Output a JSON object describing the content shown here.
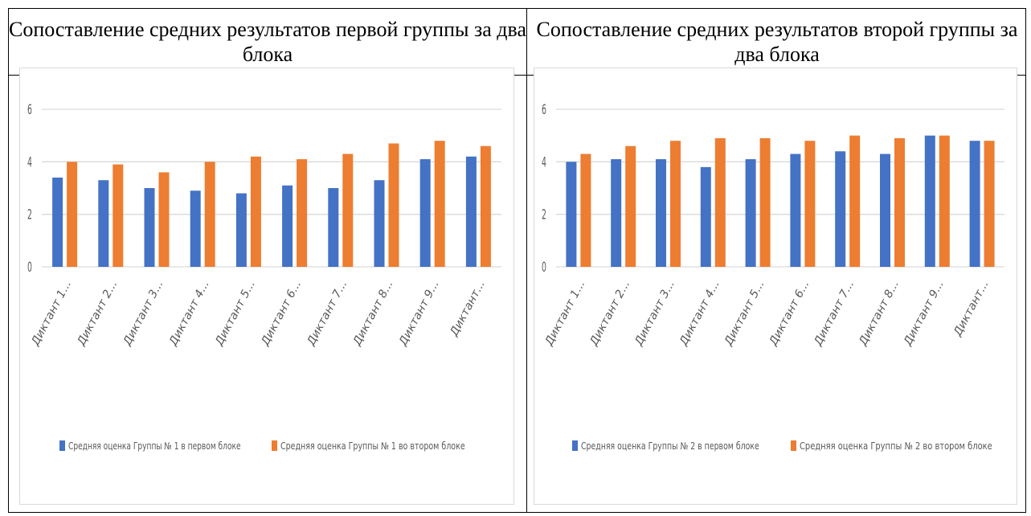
{
  "table": {
    "left_header": "Сопоставление средних результатов первой группы за два блока",
    "right_header": "Сопоставление средних результатов второй группы за два блока"
  },
  "colors": {
    "series1": "#4472C4",
    "series2": "#ED7D31"
  },
  "chart_data": [
    {
      "type": "bar",
      "categories": [
        "Диктант 1...",
        "Диктант 2...",
        "Диктант 3...",
        "Диктант 4...",
        "Диктант 5...",
        "Диктант 6...",
        "Диктант 7...",
        "Диктант 8...",
        "Диктант 9...",
        "Диктант..."
      ],
      "series": [
        {
          "name": "Средняя оценка Группы № 1 в первом блоке",
          "values": [
            3.4,
            3.3,
            3.0,
            2.9,
            2.8,
            3.1,
            3.0,
            3.3,
            4.1,
            4.2
          ]
        },
        {
          "name": "Средняя оценка Группы № 1 во втором блоке",
          "values": [
            4.0,
            3.9,
            3.6,
            4.0,
            4.2,
            4.1,
            4.3,
            4.7,
            4.8,
            4.6
          ]
        }
      ],
      "yticks": [
        "0",
        "2",
        "4",
        "6"
      ],
      "ylim": [
        0,
        6
      ],
      "grid": true,
      "legend": "bottom"
    },
    {
      "type": "bar",
      "categories": [
        "Диктант 1...",
        "Диктант 2...",
        "Диктант 3...",
        "Диктант 4...",
        "Диктант 5...",
        "Диктант 6...",
        "Диктант 7...",
        "Диктант 8...",
        "Диктант 9...",
        "Диктант..."
      ],
      "series": [
        {
          "name": "Средняя оценка Группы № 2 в первом блоке",
          "values": [
            4.0,
            4.1,
            4.1,
            3.8,
            4.1,
            4.3,
            4.4,
            4.3,
            5.0,
            4.8
          ]
        },
        {
          "name": "Средняя оценка Группы № 2 во втором блоке",
          "values": [
            4.3,
            4.6,
            4.8,
            4.9,
            4.9,
            4.8,
            5.0,
            4.9,
            5.0,
            4.8
          ]
        }
      ],
      "yticks": [
        "0",
        "2",
        "4",
        "6"
      ],
      "ylim": [
        0,
        6
      ],
      "grid": true,
      "legend": "bottom"
    }
  ]
}
